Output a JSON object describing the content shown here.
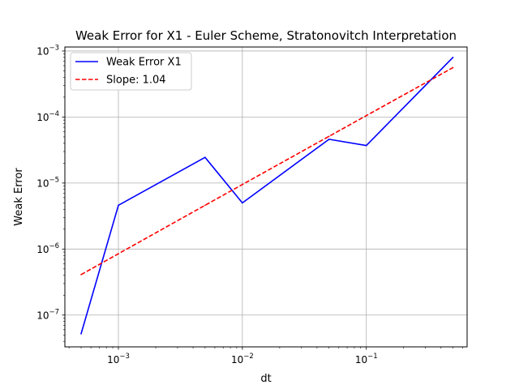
{
  "chart_data": {
    "type": "line",
    "title": "Weak Error for X1 - Euler Scheme, Stratonovitch Interpretation",
    "xlabel": "dt",
    "ylabel": "Weak Error",
    "xscale": "log",
    "yscale": "log",
    "xlim": [
      0.00037,
      0.65
    ],
    "ylim": [
      3.3e-08,
      0.00115
    ],
    "grid": true,
    "legend_position": "upper-left",
    "x_ticks": [
      {
        "value": 0.001,
        "base": "10",
        "exp": "−3"
      },
      {
        "value": 0.01,
        "base": "10",
        "exp": "−2"
      },
      {
        "value": 0.1,
        "base": "10",
        "exp": "−1"
      }
    ],
    "y_ticks": [
      {
        "value": 1e-07,
        "base": "10",
        "exp": "−7"
      },
      {
        "value": 1e-06,
        "base": "10",
        "exp": "−6"
      },
      {
        "value": 1e-05,
        "base": "10",
        "exp": "−5"
      },
      {
        "value": 0.0001,
        "base": "10",
        "exp": "−4"
      },
      {
        "value": 0.001,
        "base": "10",
        "exp": "−3"
      }
    ],
    "series": [
      {
        "name": "Weak Error X1",
        "color": "#0000ff",
        "style": "solid",
        "x": [
          0.0005,
          0.001,
          0.005,
          0.01,
          0.05,
          0.1,
          0.5
        ],
        "y": [
          5.2e-08,
          4.6e-06,
          2.45e-05,
          5e-06,
          4.6e-05,
          3.7e-05,
          0.0008
        ]
      },
      {
        "name": "Slope: 1.04",
        "color": "#ff0000",
        "style": "dashed",
        "x": [
          0.0005,
          0.001,
          0.005,
          0.01,
          0.05,
          0.1,
          0.5
        ],
        "y": [
          4.1e-07,
          8.5e-07,
          4.6e-06,
          9.5e-06,
          5.1e-05,
          0.000105,
          0.00056
        ]
      }
    ]
  }
}
